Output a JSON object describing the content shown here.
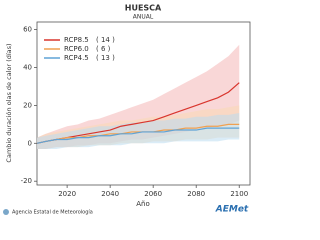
{
  "chart_data": {
    "type": "line",
    "title": "HUESCA",
    "subtitle": "ANUAL",
    "x_label": "Año",
    "y_label": "Cambio duración olas de calor (días)",
    "source": "Agencia Estatal de Meteorología",
    "logo": "AEMet",
    "x": [
      2006,
      2010,
      2015,
      2020,
      2025,
      2030,
      2035,
      2040,
      2045,
      2050,
      2055,
      2060,
      2065,
      2070,
      2075,
      2080,
      2085,
      2090,
      2095,
      2100
    ],
    "xlim": [
      2006,
      2105
    ],
    "xticks": [
      2020,
      2040,
      2060,
      2080,
      2100
    ],
    "ylim": [
      -22,
      64
    ],
    "yticks": [
      -20,
      0,
      20,
      40,
      60
    ],
    "series": [
      {
        "name": "RCP8.5",
        "members": "( 14 )",
        "color": "#d9352d",
        "band_color": "#f4b6b6",
        "values": [
          0,
          1,
          2,
          3,
          4,
          5,
          6,
          7,
          9,
          10,
          11,
          12,
          14,
          16,
          18,
          20,
          22,
          24,
          27,
          32
        ],
        "lower": [
          -3,
          -3,
          -2,
          -2,
          -1,
          -1,
          0,
          0,
          1,
          2,
          2,
          3,
          4,
          5,
          6,
          7,
          8,
          9,
          10,
          12
        ],
        "upper": [
          3,
          5,
          7,
          9,
          10,
          12,
          13,
          15,
          17,
          19,
          21,
          23,
          26,
          29,
          32,
          35,
          38,
          42,
          46,
          52
        ]
      },
      {
        "name": "RCP6.0",
        "members": "( 6 )",
        "color": "#f0a050",
        "band_color": "#f9d9b4",
        "values": [
          0,
          1,
          2,
          3,
          3,
          4,
          4,
          5,
          5,
          6,
          6,
          6,
          7,
          7,
          8,
          8,
          9,
          9,
          10,
          10
        ],
        "lower": [
          -3,
          -3,
          -2,
          -2,
          -2,
          -1,
          -1,
          -1,
          0,
          0,
          0,
          1,
          1,
          1,
          2,
          2,
          2,
          3,
          3,
          3
        ],
        "upper": [
          3,
          5,
          6,
          7,
          8,
          9,
          10,
          11,
          12,
          12,
          13,
          14,
          14,
          15,
          16,
          17,
          18,
          18,
          19,
          20
        ]
      },
      {
        "name": "RCP4.5",
        "members": "( 13 )",
        "color": "#5fa3d6",
        "band_color": "#bcdcf0",
        "values": [
          0,
          1,
          2,
          2,
          3,
          3,
          4,
          4,
          5,
          5,
          6,
          6,
          6,
          7,
          7,
          7,
          8,
          8,
          8,
          8
        ],
        "lower": [
          -3,
          -3,
          -3,
          -2,
          -2,
          -2,
          -1,
          -1,
          -1,
          0,
          0,
          0,
          0,
          1,
          1,
          1,
          1,
          1,
          2,
          2
        ],
        "upper": [
          3,
          4,
          5,
          6,
          7,
          8,
          9,
          9,
          10,
          11,
          11,
          12,
          12,
          13,
          13,
          14,
          14,
          15,
          15,
          16
        ]
      }
    ]
  }
}
